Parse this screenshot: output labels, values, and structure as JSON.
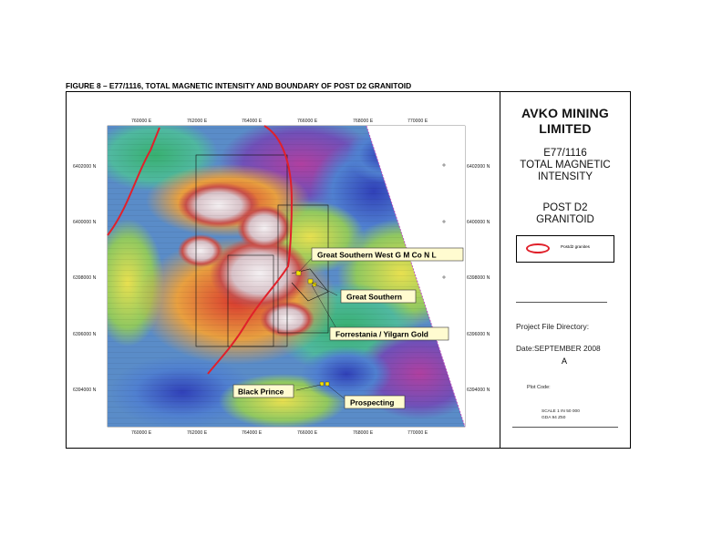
{
  "figure_title": "FIGURE 8 – E77/1116, TOTAL MAGNETIC INTENSITY AND BOUNDARY OF POST D2 GRANITOID",
  "panel": {
    "company_line1": "AVKO MINING",
    "company_line2": "LIMITED",
    "license_line1": "E77/1116",
    "license_line2": "TOTAL MAGNETIC",
    "license_line3": "INTENSITY",
    "granitoid_line1": "POST D2",
    "granitoid_line2": "GRANITOID",
    "legend_label": "Postd2 granites",
    "project_dir": "Project File Directory:",
    "date": "Date:SEPTEMBER 2008",
    "north_symbol": "A",
    "plot_code": "Plot Code:",
    "scale": "SCALE 1 IN 50 000",
    "datum": "GDA 94 Z50"
  },
  "map": {
    "eastings": [
      "760000 E",
      "762000 E",
      "764000 E",
      "766000 E",
      "768000 E",
      "770000 E"
    ],
    "northings": [
      "6402000 N",
      "6400000 N",
      "6398000 N",
      "6396000 N",
      "6394000 N"
    ],
    "labels": {
      "great_southern_west": "Great Southern West G M Co N L",
      "great_southern": "Great Southern",
      "forrestania": "Forrestania / Yilgarn Gold",
      "black_prince": "Black Prince",
      "prospecting": "Prospecting"
    },
    "colors": {
      "granite_boundary": "#e0202a",
      "label_fill": "#fffbd0",
      "mine_marker": "#f5e200"
    }
  }
}
